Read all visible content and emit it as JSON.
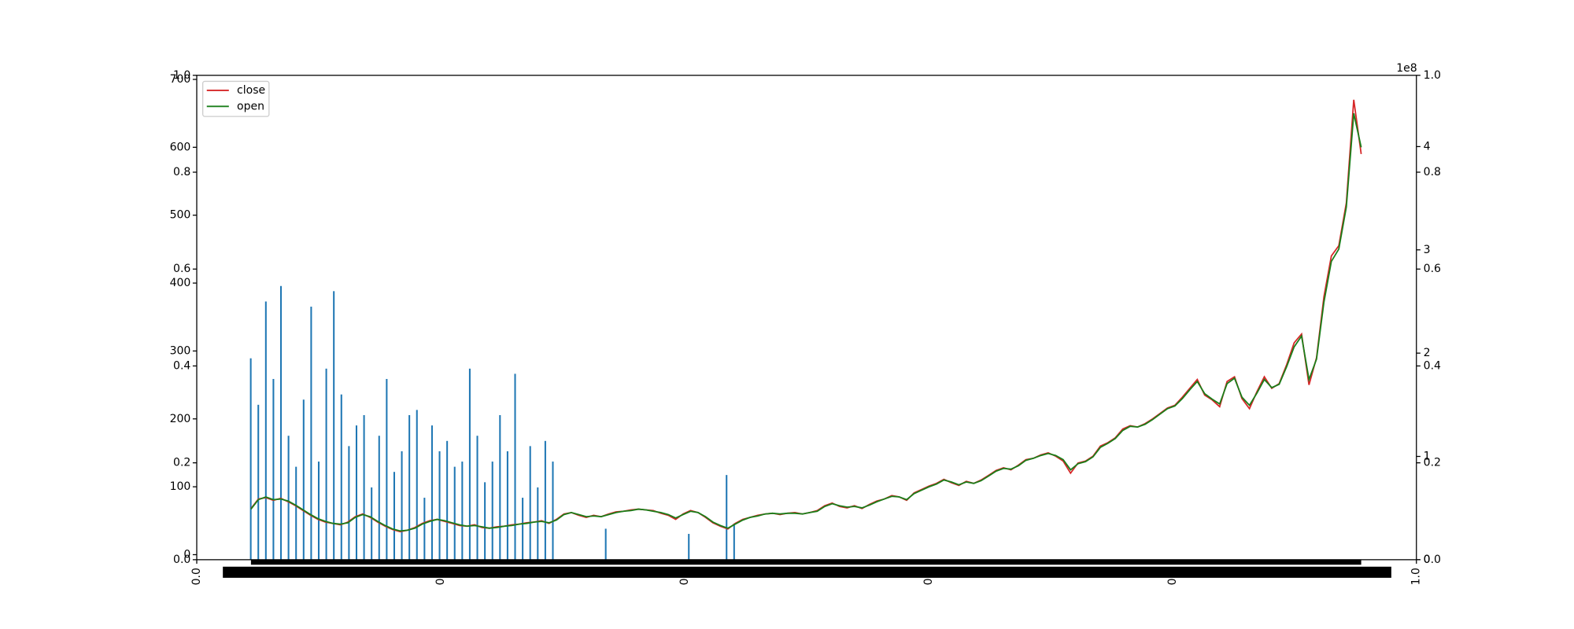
{
  "chart_data": [
    {
      "type": "axes",
      "xlim": [
        0,
        1
      ],
      "ylim": [
        0,
        1
      ],
      "y2lim": [
        0,
        1
      ],
      "xticks": [
        {
          "value": 0,
          "label": "0.0"
        },
        0.2,
        0.4,
        0.6,
        0.8,
        {
          "value": 1,
          "label": "1.0"
        }
      ],
      "yticks": [
        {
          "value": 0,
          "label": "0.0"
        },
        0.2,
        0.4,
        0.6,
        0.8,
        {
          "value": 1,
          "label": "1.0"
        }
      ],
      "y2ticks": [
        {
          "value": 0,
          "label": "0.0"
        },
        0.2,
        0.4,
        0.6,
        0.8,
        {
          "value": 1,
          "label": "1.0"
        }
      ]
    },
    {
      "type": "line",
      "ylim": [
        -7.4,
        706
      ],
      "yticks": [
        0,
        100,
        200,
        300,
        400,
        500,
        600,
        700
      ],
      "legend": "upper left",
      "series": [
        {
          "name": "close",
          "color": "#d62728",
          "values": [
            68,
            82,
            84,
            80,
            83,
            78,
            72,
            65,
            58,
            52,
            48,
            46,
            44,
            48,
            56,
            60,
            55,
            48,
            42,
            37,
            34,
            36,
            40,
            46,
            50,
            52,
            49,
            46,
            43,
            42,
            44,
            40,
            39,
            41,
            42,
            44,
            45,
            47,
            48,
            50,
            46,
            52,
            60,
            62,
            58,
            55,
            58,
            56,
            60,
            63,
            64,
            66,
            67,
            66,
            65,
            61,
            58,
            52,
            60,
            65,
            62,
            55,
            47,
            42,
            38,
            46,
            52,
            55,
            58,
            60,
            61,
            59,
            61,
            62,
            60,
            62,
            65,
            72,
            76,
            71,
            69,
            72,
            68,
            74,
            79,
            82,
            87,
            85,
            80,
            91,
            96,
            101,
            105,
            111,
            106,
            102,
            108,
            105,
            110,
            117,
            124,
            128,
            125,
            132,
            140,
            142,
            147,
            150,
            145,
            138,
            120,
            135,
            138,
            145,
            160,
            165,
            172,
            185,
            190,
            188,
            193,
            200,
            208,
            216,
            220,
            232,
            245,
            258,
            235,
            228,
            218,
            255,
            262,
            230,
            215,
            240,
            262,
            245,
            252,
            280,
            312,
            325,
            250,
            290,
            380,
            440,
            455,
            518,
            670,
            590
          ]
        },
        {
          "name": "open",
          "color": "#1a7f1a",
          "values": [
            67,
            81,
            85,
            81,
            82,
            79,
            73,
            66,
            59,
            53,
            49,
            46,
            45,
            47,
            55,
            59,
            56,
            49,
            43,
            38,
            35,
            36,
            39,
            45,
            49,
            52,
            50,
            47,
            44,
            42,
            43,
            41,
            39,
            40,
            42,
            43,
            45,
            46,
            48,
            49,
            47,
            51,
            59,
            62,
            59,
            56,
            57,
            56,
            59,
            62,
            64,
            65,
            67,
            66,
            64,
            62,
            59,
            54,
            59,
            64,
            62,
            56,
            48,
            43,
            39,
            45,
            51,
            55,
            57,
            60,
            61,
            60,
            61,
            61,
            60,
            62,
            64,
            71,
            75,
            72,
            70,
            71,
            69,
            73,
            78,
            82,
            86,
            85,
            81,
            90,
            95,
            100,
            104,
            110,
            107,
            103,
            107,
            105,
            109,
            116,
            123,
            127,
            126,
            131,
            139,
            142,
            146,
            149,
            146,
            140,
            125,
            134,
            137,
            144,
            158,
            164,
            171,
            183,
            189,
            188,
            192,
            199,
            207,
            215,
            219,
            230,
            243,
            255,
            237,
            229,
            222,
            252,
            260,
            232,
            220,
            238,
            258,
            246,
            251,
            277,
            306,
            322,
            258,
            288,
            372,
            432,
            450,
            512,
            650,
            600
          ]
        }
      ]
    },
    {
      "type": "bar",
      "color": "#1f77b4",
      "offset_text": "1e8",
      "ylim": [
        0,
        469000000
      ],
      "yticks": [
        0,
        {
          "value": 100000000,
          "label": "1"
        },
        {
          "value": 200000000,
          "label": "2"
        },
        {
          "value": 300000000,
          "label": "3"
        },
        {
          "value": 400000000,
          "label": "4"
        }
      ],
      "values": [
        195000000,
        150000000,
        250000000,
        175000000,
        265000000,
        120000000,
        90000000,
        155000000,
        245000000,
        95000000,
        185000000,
        260000000,
        160000000,
        110000000,
        130000000,
        140000000,
        70000000,
        120000000,
        175000000,
        85000000,
        105000000,
        140000000,
        145000000,
        60000000,
        130000000,
        105000000,
        115000000,
        90000000,
        95000000,
        185000000,
        120000000,
        75000000,
        95000000,
        140000000,
        105000000,
        180000000,
        60000000,
        110000000,
        70000000,
        115000000,
        95000000,
        null,
        null,
        null,
        null,
        null,
        null,
        30000000,
        null,
        null,
        null,
        null,
        null,
        null,
        null,
        null,
        null,
        null,
        25000000,
        null,
        null,
        null,
        null,
        82000000,
        35000000,
        null,
        null,
        null,
        null,
        null,
        null,
        null,
        null,
        null,
        null,
        null,
        null,
        null,
        null,
        null,
        null,
        null,
        null,
        null,
        null,
        null,
        null,
        null,
        null,
        null,
        null,
        null,
        null,
        null,
        null,
        null,
        null,
        null,
        null,
        null,
        null,
        null,
        null,
        null,
        null,
        null,
        null,
        null,
        null,
        null,
        null,
        null,
        null,
        null,
        null,
        null,
        null,
        null,
        null,
        null,
        null,
        null,
        null,
        null,
        null,
        null,
        null,
        null,
        null,
        null,
        null,
        null,
        null,
        null,
        null,
        null,
        null,
        null,
        null,
        null,
        null,
        null,
        null,
        null,
        null,
        null,
        null,
        null
      ]
    }
  ]
}
